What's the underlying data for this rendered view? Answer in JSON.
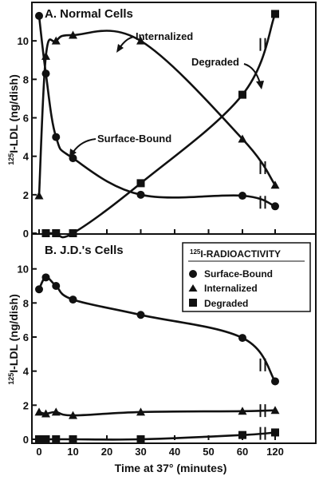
{
  "chart_data": {
    "type": "line",
    "colors": {
      "ink": "#111111",
      "background": "#ffffff"
    },
    "shared_x": {
      "label": "Time at 37°  (minutes)",
      "ticks": [
        0,
        10,
        20,
        30,
        40,
        50,
        60,
        120
      ],
      "tick_labels": [
        "0",
        "10",
        "20",
        "30",
        "40",
        "50",
        "60",
        "120"
      ],
      "axis_break": "between 60 and 120"
    },
    "ylabel": "125I-LDL (ng/dish)",
    "ylabel_parts": {
      "superscript": "125",
      "main": "I-LDL (ng/dish)"
    },
    "legend": {
      "title": "125I-RADIOACTIVITY",
      "title_parts": {
        "superscript": "125",
        "main": "I-RADIOACTIVITY"
      },
      "placement": "panel-B top-right",
      "entries": [
        {
          "name": "Surface-Bound",
          "marker": "circle"
        },
        {
          "name": "Internalized",
          "marker": "triangle"
        },
        {
          "name": "Degraded",
          "marker": "square"
        }
      ]
    },
    "panels": [
      {
        "title": "A.  Normal Cells",
        "ylim": [
          0,
          12
        ],
        "yticks": [
          0,
          2,
          4,
          6,
          8,
          10
        ],
        "annotations": [
          {
            "text": "Internalized",
            "series": "Internalized"
          },
          {
            "text": "Degraded",
            "series": "Degraded"
          },
          {
            "text": "Surface-Bound",
            "series": "Surface-Bound"
          }
        ],
        "series": [
          {
            "name": "Surface-Bound",
            "marker": "circle",
            "x": [
              0,
              2,
              5,
              10,
              30,
              60,
              120
            ],
            "y": [
              11.3,
              8.3,
              5.0,
              3.9,
              2.0,
              1.95,
              1.4
            ]
          },
          {
            "name": "Internalized",
            "marker": "triangle",
            "x": [
              0,
              2,
              5,
              10,
              30,
              60,
              120
            ],
            "y": [
              1.95,
              9.2,
              10.0,
              10.3,
              10.0,
              4.9,
              2.5
            ]
          },
          {
            "name": "Degraded",
            "marker": "square",
            "x": [
              2,
              5,
              10,
              30,
              60,
              120
            ],
            "y": [
              0,
              0,
              0,
              2.6,
              7.2,
              11.4
            ]
          }
        ]
      },
      {
        "title": "B.  J.D.'s Cells",
        "ylim": [
          0,
          12
        ],
        "yticks": [
          0,
          2,
          4,
          6,
          8,
          10
        ],
        "annotations": [],
        "series": [
          {
            "name": "Surface-Bound",
            "marker": "circle",
            "x": [
              0,
              2,
              5,
              10,
              30,
              60,
              120
            ],
            "y": [
              8.8,
              9.5,
              9.0,
              8.2,
              7.3,
              5.95,
              3.4
            ]
          },
          {
            "name": "Internalized",
            "marker": "triangle",
            "x": [
              0,
              2,
              5,
              10,
              30,
              60,
              120
            ],
            "y": [
              1.6,
              1.5,
              1.6,
              1.4,
              1.6,
              1.65,
              1.7
            ]
          },
          {
            "name": "Degraded",
            "marker": "square",
            "x": [
              0,
              2,
              5,
              10,
              30,
              60,
              120
            ],
            "y": [
              0,
              0,
              0,
              0,
              0,
              0.25,
              0.4
            ]
          }
        ]
      }
    ]
  }
}
